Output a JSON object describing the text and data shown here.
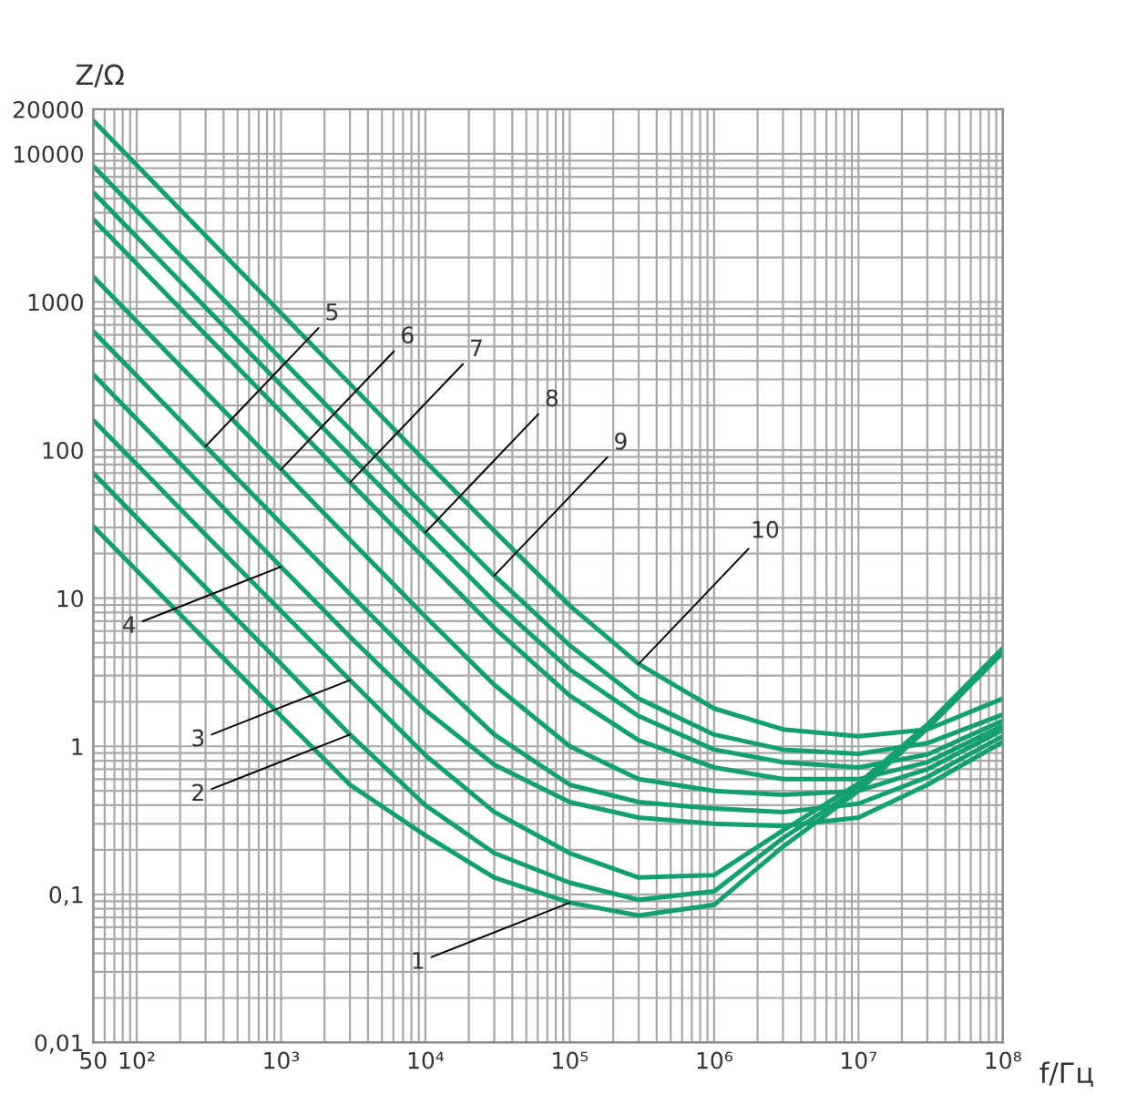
{
  "chart_data": {
    "type": "line",
    "xlabel": "f/Гц",
    "ylabel": "Z/Ω",
    "log": "xy",
    "grid": true,
    "legend": false,
    "marker": "none",
    "line_style": "solid",
    "x": [
      50,
      100,
      300,
      1000,
      3000,
      10000,
      30000,
      100000,
      300000,
      1000000,
      3000000,
      10000000,
      30000000,
      100000000
    ],
    "xlim": [
      50,
      100000000
    ],
    "xticks": [
      50,
      {
        "value": 100,
        "label": "10²"
      },
      {
        "value": 1000,
        "label": "10³"
      },
      {
        "value": 10000,
        "label": "10⁴"
      },
      {
        "value": 100000,
        "label": "10⁵"
      },
      {
        "value": 1000000,
        "label": "10⁶"
      },
      {
        "value": 10000000,
        "label": "10⁷"
      },
      {
        "value": 100000000,
        "label": "10⁸"
      }
    ],
    "ylim": [
      0.01,
      20000
    ],
    "yticks": [
      {
        "value": 0.01,
        "label": "0,01"
      },
      {
        "value": 0.1,
        "label": "0,1"
      },
      1,
      10,
      100,
      1000,
      10000,
      20000
    ],
    "series": [
      {
        "color": "#13a070",
        "values": [
          30.6,
          15.4,
          5.2,
          1.6,
          0.55,
          0.25,
          0.13,
          0.088,
          0.072,
          0.085,
          0.21,
          0.5,
          1.32,
          4.3
        ]
      },
      {
        "color": "#13a070",
        "values": [
          70,
          35,
          11.8,
          3.6,
          1.2,
          0.4,
          0.19,
          0.12,
          0.092,
          0.105,
          0.24,
          0.52,
          1.35,
          4.4
        ]
      },
      {
        "color": "#13a070",
        "values": [
          159,
          80,
          26.8,
          8.2,
          2.8,
          0.87,
          0.36,
          0.19,
          0.13,
          0.135,
          0.27,
          0.56,
          1.4,
          4.6
        ]
      },
      {
        "color": "#13a070",
        "values": [
          324,
          162,
          54,
          16.3,
          5.5,
          1.75,
          0.75,
          0.42,
          0.33,
          0.3,
          0.29,
          0.33,
          0.55,
          1.07
        ]
      },
      {
        "color": "#13a070",
        "values": [
          634,
          317,
          106,
          32,
          10.7,
          3.3,
          1.2,
          0.55,
          0.42,
          0.38,
          0.36,
          0.41,
          0.62,
          1.17
        ]
      },
      {
        "color": "#13a070",
        "values": [
          1480,
          740,
          247,
          74,
          24.8,
          7.5,
          2.6,
          1.0,
          0.6,
          0.5,
          0.47,
          0.5,
          0.7,
          1.29
        ]
      },
      {
        "color": "#13a070",
        "values": [
          3620,
          1810,
          603,
          181,
          60.5,
          18.3,
          6.3,
          2.2,
          1.1,
          0.72,
          0.6,
          0.6,
          0.78,
          1.38
        ]
      },
      {
        "color": "#13a070",
        "values": [
          5500,
          2750,
          917,
          275,
          92,
          27.8,
          9.5,
          3.3,
          1.6,
          0.95,
          0.78,
          0.72,
          0.88,
          1.49
        ]
      },
      {
        "color": "#13a070",
        "values": [
          8270,
          4135,
          1378,
          413,
          138,
          41.5,
          14.2,
          4.8,
          2.1,
          1.2,
          0.95,
          0.89,
          1.05,
          1.64
        ]
      },
      {
        "color": "#13a070",
        "values": [
          16800,
          8400,
          2800,
          840,
          280,
          84,
          28.5,
          8.9,
          3.6,
          1.8,
          1.3,
          1.17,
          1.3,
          2.1
        ]
      }
    ],
    "annotations": [
      {
        "text": "1",
        "x": 100000,
        "y": 0.088
      },
      {
        "text": "2",
        "x": 3000,
        "y": 1.2
      },
      {
        "text": "3",
        "x": 3000,
        "y": 2.8
      },
      {
        "text": "4",
        "x": 1000,
        "y": 16.3
      },
      {
        "text": "5",
        "x": 300,
        "y": 106
      },
      {
        "text": "6",
        "x": 1000,
        "y": 74
      },
      {
        "text": "7",
        "x": 3000,
        "y": 60.5
      },
      {
        "text": "8",
        "x": 10000,
        "y": 27.8
      },
      {
        "text": "9",
        "x": 30000,
        "y": 14.2
      },
      {
        "text": "10",
        "x": 300000,
        "y": 3.6
      }
    ]
  }
}
